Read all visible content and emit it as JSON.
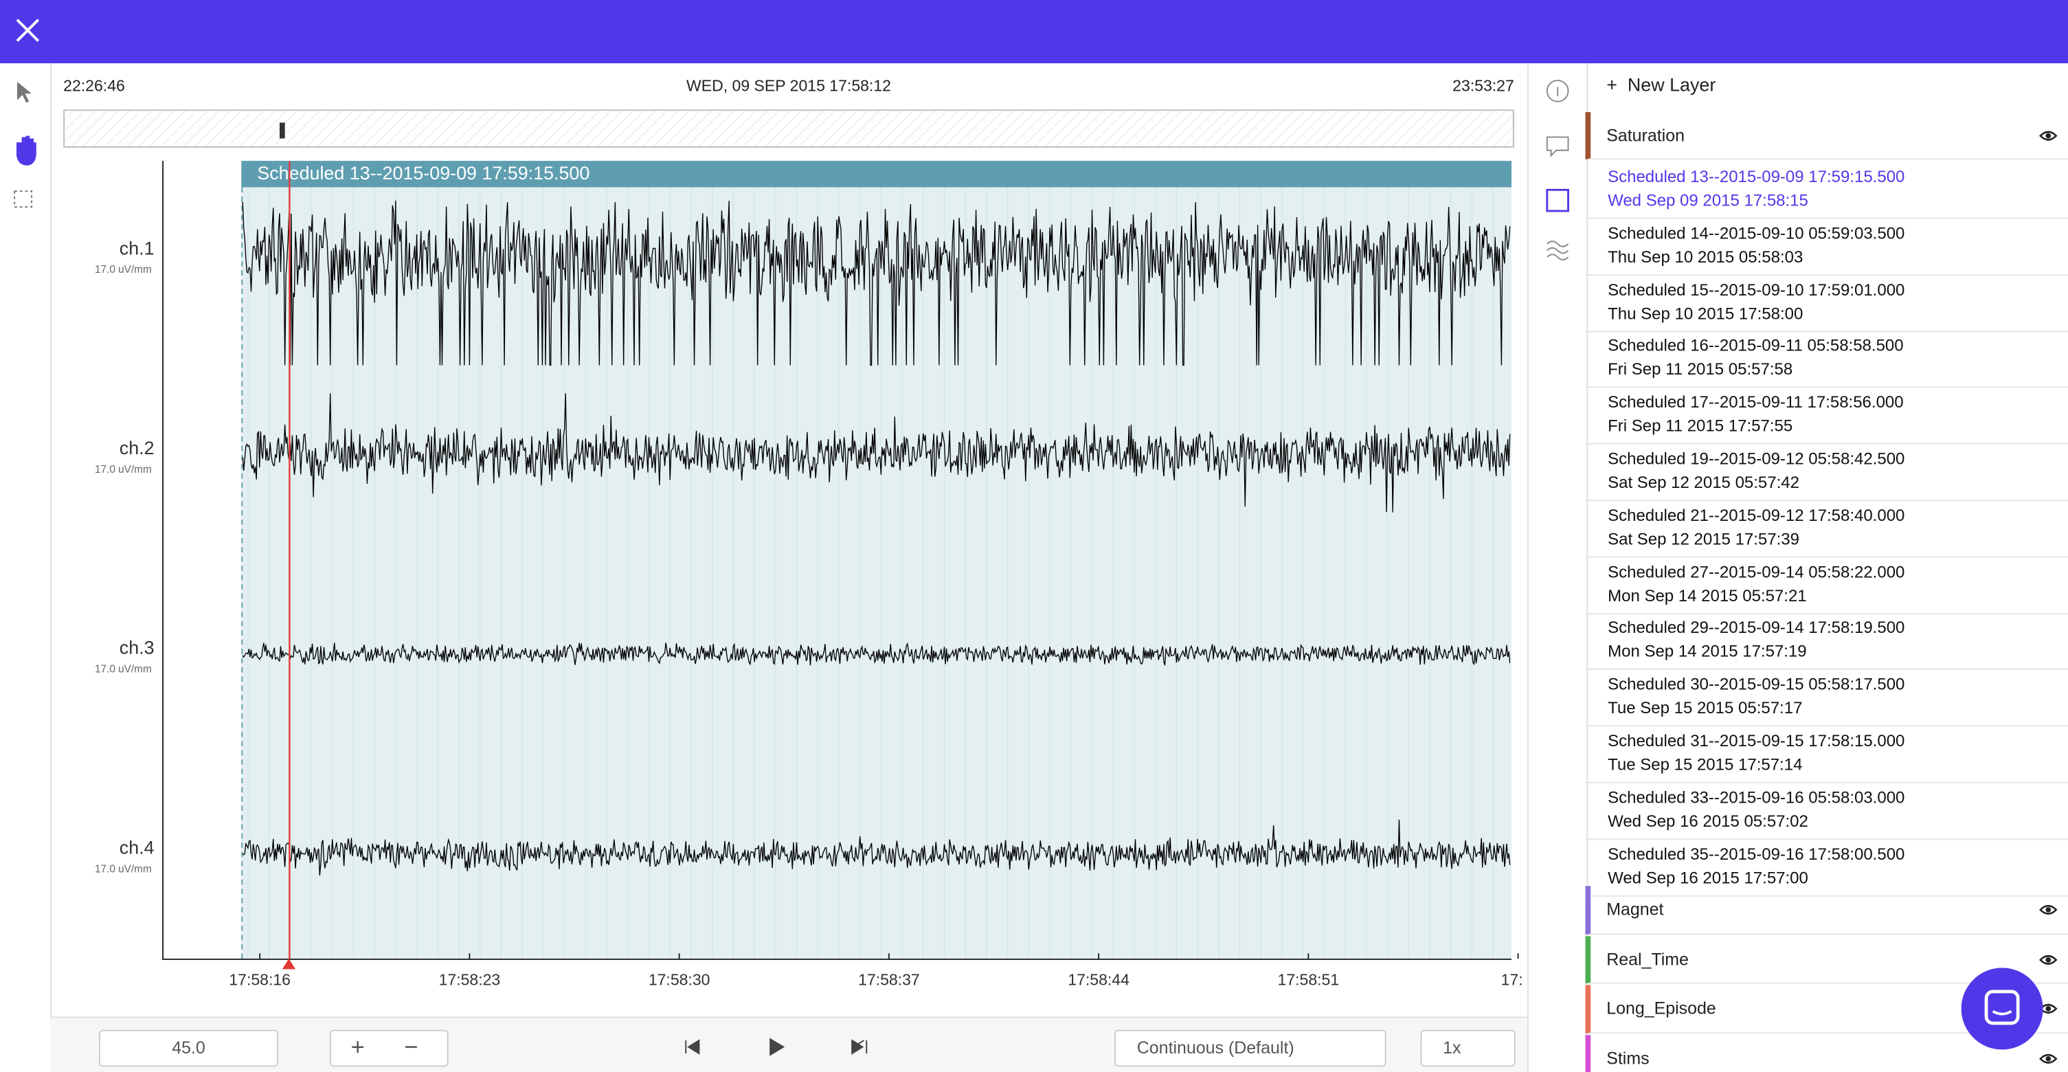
{
  "timeline": {
    "start": "22:26:46",
    "current": "WED, 09 SEP 2015 17:58:12",
    "end": "23:53:27"
  },
  "annotation_label": "Scheduled 13--2015-09-09 17:59:15.500",
  "channels": [
    {
      "name": "ch.1",
      "scale": "17.0 uV/mm"
    },
    {
      "name": "ch.2",
      "scale": "17.0 uV/mm"
    },
    {
      "name": "ch.3",
      "scale": "17.0 uV/mm"
    },
    {
      "name": "ch.4",
      "scale": "17.0 uV/mm"
    }
  ],
  "time_ticks": [
    "17:58:16",
    "17:58:23",
    "17:58:30",
    "17:58:37",
    "17:58:44",
    "17:58:51",
    "17:"
  ],
  "controls": {
    "window": "45.0",
    "mode": "Continuous (Default)",
    "speed": "1x"
  },
  "layers": {
    "new_layer": "New Layer",
    "groups": [
      {
        "name": "Saturation",
        "color": "#a0522d",
        "items": [
          {
            "title": "Scheduled 13--2015-09-09 17:59:15.500",
            "time": "Wed Sep 09 2015 17:58:15"
          },
          {
            "title": "Scheduled 14--2015-09-10 05:59:03.500",
            "time": "Thu Sep 10 2015 05:58:03"
          },
          {
            "title": "Scheduled 15--2015-09-10 17:59:01.000",
            "time": "Thu Sep 10 2015 17:58:00"
          },
          {
            "title": "Scheduled 16--2015-09-11 05:58:58.500",
            "time": "Fri Sep 11 2015 05:57:58"
          },
          {
            "title": "Scheduled 17--2015-09-11 17:58:56.000",
            "time": "Fri Sep 11 2015 17:57:55"
          },
          {
            "title": "Scheduled 19--2015-09-12 05:58:42.500",
            "time": "Sat Sep 12 2015 05:57:42"
          },
          {
            "title": "Scheduled 21--2015-09-12 17:58:40.000",
            "time": "Sat Sep 12 2015 17:57:39"
          },
          {
            "title": "Scheduled 27--2015-09-14 05:58:22.000",
            "time": "Mon Sep 14 2015 05:57:21"
          },
          {
            "title": "Scheduled 29--2015-09-14 17:58:19.500",
            "time": "Mon Sep 14 2015 17:57:19"
          },
          {
            "title": "Scheduled 30--2015-09-15 05:58:17.500",
            "time": "Tue Sep 15 2015 05:57:17"
          },
          {
            "title": "Scheduled 31--2015-09-15 17:58:15.000",
            "time": "Tue Sep 15 2015 17:57:14"
          },
          {
            "title": "Scheduled 33--2015-09-16 05:58:03.000",
            "time": "Wed Sep 16 2015 05:57:02"
          },
          {
            "title": "Scheduled 35--2015-09-16 17:58:00.500",
            "time": "Wed Sep 16 2015 17:57:00"
          }
        ]
      },
      {
        "name": "Magnet",
        "color": "#8a6fd8",
        "items": []
      },
      {
        "name": "Real_Time",
        "color": "#4caf50",
        "items": []
      },
      {
        "name": "Long_Episode",
        "color": "#e8735a",
        "items": []
      },
      {
        "name": "Stims",
        "color": "#d64fd6",
        "items": []
      }
    ]
  }
}
